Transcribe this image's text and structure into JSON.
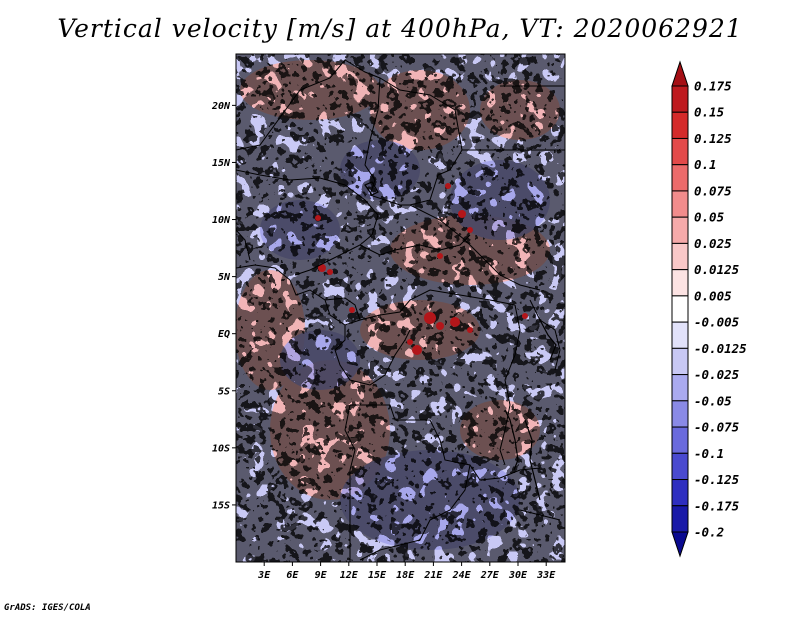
{
  "title": "Vertical velocity [m/s] at 400hPa, VT: 2020062921",
  "credit": "GrADS: IGES/COLA",
  "map": {
    "lat_labels": [
      "20N",
      "15N",
      "10N",
      "5N",
      "EQ",
      "5S",
      "10S",
      "15S"
    ],
    "lon_labels": [
      "3E",
      "6E",
      "9E",
      "12E",
      "15E",
      "18E",
      "21E",
      "24E",
      "27E",
      "30E",
      "33E"
    ],
    "lat_values": [
      20,
      15,
      10,
      5,
      0,
      -5,
      -10,
      -15
    ],
    "lon_values": [
      3,
      6,
      9,
      12,
      15,
      18,
      21,
      24,
      27,
      30,
      33
    ],
    "lat_range": [
      -20,
      24.5
    ],
    "lon_range": [
      0,
      35
    ]
  },
  "colorbar": {
    "labels": [
      "0.175",
      "0.15",
      "0.125",
      "0.1",
      "0.075",
      "0.05",
      "0.025",
      "0.0125",
      "0.005",
      "-0.005",
      "-0.0125",
      "-0.025",
      "-0.05",
      "-0.075",
      "-0.1",
      "-0.125",
      "-0.175",
      "-0.2"
    ],
    "colors": [
      "#a50f15",
      "#be1a1f",
      "#d42a2a",
      "#e34a4a",
      "#ec6b6b",
      "#f28c8c",
      "#f6aaaa",
      "#f9c8c8",
      "#fce3e3",
      "#ffffff",
      "#e2e2fa",
      "#c8c8f4",
      "#aaaaef",
      "#8a8ae6",
      "#6a6adc",
      "#4a4ad0",
      "#2f2fc0",
      "#1a1aa8",
      "#0a0a90"
    ]
  }
}
